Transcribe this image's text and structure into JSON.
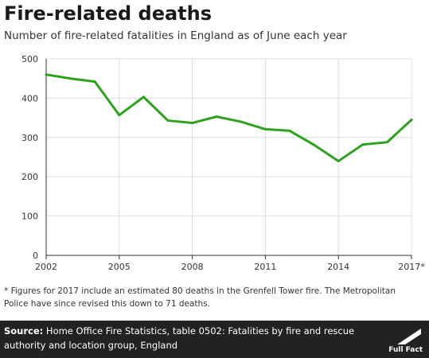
{
  "header": {
    "title": "Fire-related deaths",
    "subtitle": "Number of fire-related fatalities in England as of June each year"
  },
  "footnote": "* Figures for 2017 include an estimated 80 deaths in the Grenfell Tower fire.  The Metropolitan Police have since revised this down to 71 deaths.",
  "source": {
    "label": "Source:",
    "text": " Home Office Fire Statistics, table 0502: Fatalities by fire and rescue authority and location group, England"
  },
  "logo": {
    "text": "Full Fact",
    "icon": "full-fact-logo"
  },
  "colors": {
    "line": "#2ea11f",
    "grid": "#dddddd",
    "axis": "#333333",
    "source_bg": "#222222"
  },
  "chart_data": {
    "type": "line",
    "title": "Fire-related deaths",
    "subtitle": "Number of fire-related fatalities in England as of June each year",
    "xlabel": "",
    "ylabel": "",
    "x": [
      2002,
      2003,
      2004,
      2005,
      2006,
      2007,
      2008,
      2009,
      2010,
      2011,
      2012,
      2013,
      2014,
      2015,
      2016,
      2017
    ],
    "series": [
      {
        "values": [
          460,
          450,
          442,
          357,
          403,
          343,
          337,
          353,
          340,
          321,
          317,
          281,
          240,
          282,
          288,
          345
        ]
      }
    ],
    "xlim": [
      2002,
      2017
    ],
    "ylim": [
      0,
      500
    ],
    "x_ticks": [
      2002,
      2005,
      2008,
      2011,
      2014,
      2017
    ],
    "x_tick_labels": [
      "2002",
      "2005",
      "2008",
      "2011",
      "2014",
      "2017*"
    ],
    "y_ticks": [
      0,
      100,
      200,
      300,
      400,
      500
    ],
    "y_tick_labels": [
      "0",
      "100",
      "200",
      "300",
      "400",
      "500"
    ],
    "grid": true
  }
}
